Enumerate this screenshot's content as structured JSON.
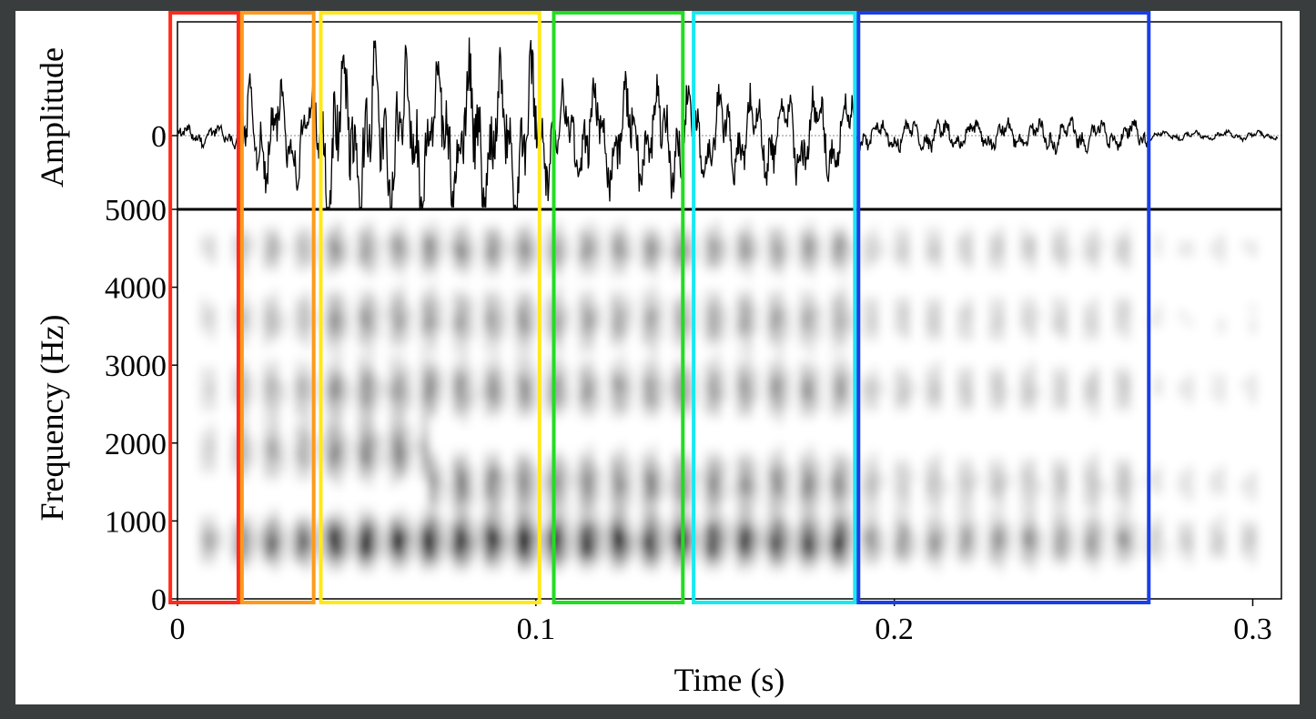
{
  "chart_data": {
    "type": "spectrogram",
    "panels": [
      {
        "name": "waveform",
        "ylabel": "Amplitude",
        "yticks": [
          {
            "label": "0",
            "value": 0
          }
        ],
        "ylim": [
          -1,
          1
        ]
      },
      {
        "name": "spectrogram",
        "ylabel": "Frequency (Hz)",
        "ylim": [
          0,
          5000
        ],
        "yticks": [
          {
            "label": "0",
            "value": 0
          },
          {
            "label": "1000",
            "value": 1000
          },
          {
            "label": "2000",
            "value": 2000
          },
          {
            "label": "3000",
            "value": 3000
          },
          {
            "label": "4000",
            "value": 4000
          },
          {
            "label": "5000",
            "value": 5000
          }
        ]
      }
    ],
    "xlabel": "Time (s)",
    "xlim": [
      0,
      0.308
    ],
    "xticks": [
      {
        "label": "0",
        "value": 0
      },
      {
        "label": "0.1",
        "value": 0.1
      },
      {
        "label": "0.2",
        "value": 0.2
      },
      {
        "label": "0.3",
        "value": 0.3
      }
    ],
    "segments": [
      {
        "start": -0.002,
        "end": 0.017,
        "color": "#ff2a1a"
      },
      {
        "start": 0.018,
        "end": 0.038,
        "color": "#ff9a1a"
      },
      {
        "start": 0.04,
        "end": 0.101,
        "color": "#ffe81a"
      },
      {
        "start": 0.105,
        "end": 0.141,
        "color": "#22dd22"
      },
      {
        "start": 0.144,
        "end": 0.189,
        "color": "#1ae8f0"
      },
      {
        "start": 0.19,
        "end": 0.271,
        "color": "#1a3ee8"
      }
    ]
  }
}
